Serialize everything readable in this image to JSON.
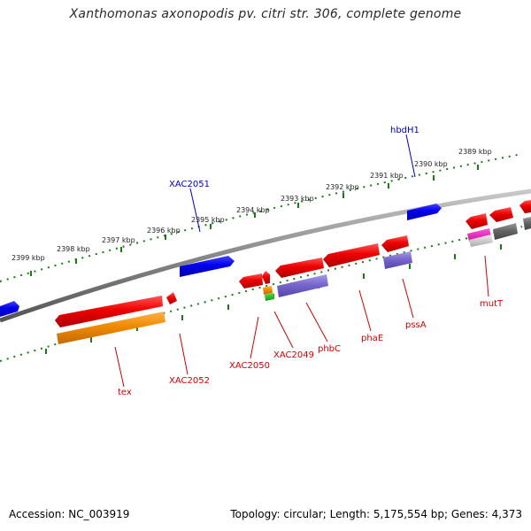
{
  "title": "Xanthomonas axonopodis pv. citri str. 306, complete genome",
  "footer": {
    "accession": "Accession: NC_003919",
    "topology": "Topology: circular; Length: 5,175,554 bp; Genes: 4,373"
  },
  "colors": {
    "backbone": "#808080",
    "tick": "#1a7a1a",
    "forward_gene": "#0000dd",
    "reverse_gene": "#ee0000",
    "rna": "#ee8800",
    "protein_domain": "#7766cc",
    "unknown": "#666666",
    "label_blue": "#0000bb",
    "label_red": "#cc0000"
  },
  "scale_labels": [
    "2399 kbp",
    "2398 kbp",
    "2397 kbp",
    "2396 kbp",
    "2395 kbp",
    "2394 kbp",
    "2393 kbp",
    "2392 kbp",
    "2391 kbp",
    "2390 kbp",
    "2389 kbp"
  ],
  "gene_labels": {
    "forward": [
      "XAC2051",
      "hbdH1"
    ],
    "reverse": [
      "tex",
      "XAC2052",
      "XAC2050",
      "XAC2049",
      "phbC",
      "phaE",
      "pssA",
      "mutT"
    ]
  }
}
